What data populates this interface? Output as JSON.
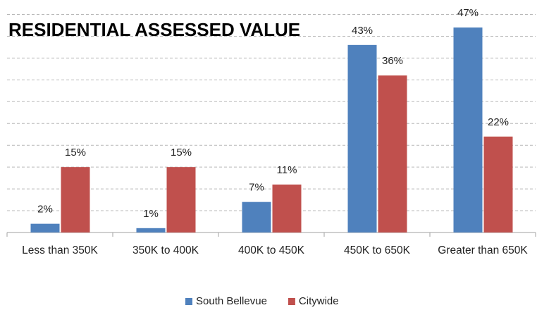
{
  "chart_data": {
    "type": "bar",
    "title": "RESIDENTIAL ASSESSED VALUE",
    "categories": [
      "Less than 350K",
      "350K to 400K",
      "400K to 450K",
      "450K to 650K",
      "Greater than 650K"
    ],
    "series": [
      {
        "name": "South Bellevue",
        "color": "#4f81bd",
        "values": [
          2,
          1,
          7,
          43,
          47
        ],
        "value_labels": [
          "2%",
          "1%",
          "7%",
          "43%",
          "47%"
        ]
      },
      {
        "name": "Citywide",
        "color": "#c0504d",
        "values": [
          15,
          15,
          11,
          36,
          22
        ],
        "value_labels": [
          "15%",
          "15%",
          "11%",
          "36%",
          "22%"
        ]
      }
    ],
    "ylim": [
      0,
      50
    ],
    "yticks": [
      5,
      10,
      15,
      20,
      25,
      30,
      35,
      40,
      45,
      50
    ],
    "grid": true,
    "legend": "bottom"
  }
}
